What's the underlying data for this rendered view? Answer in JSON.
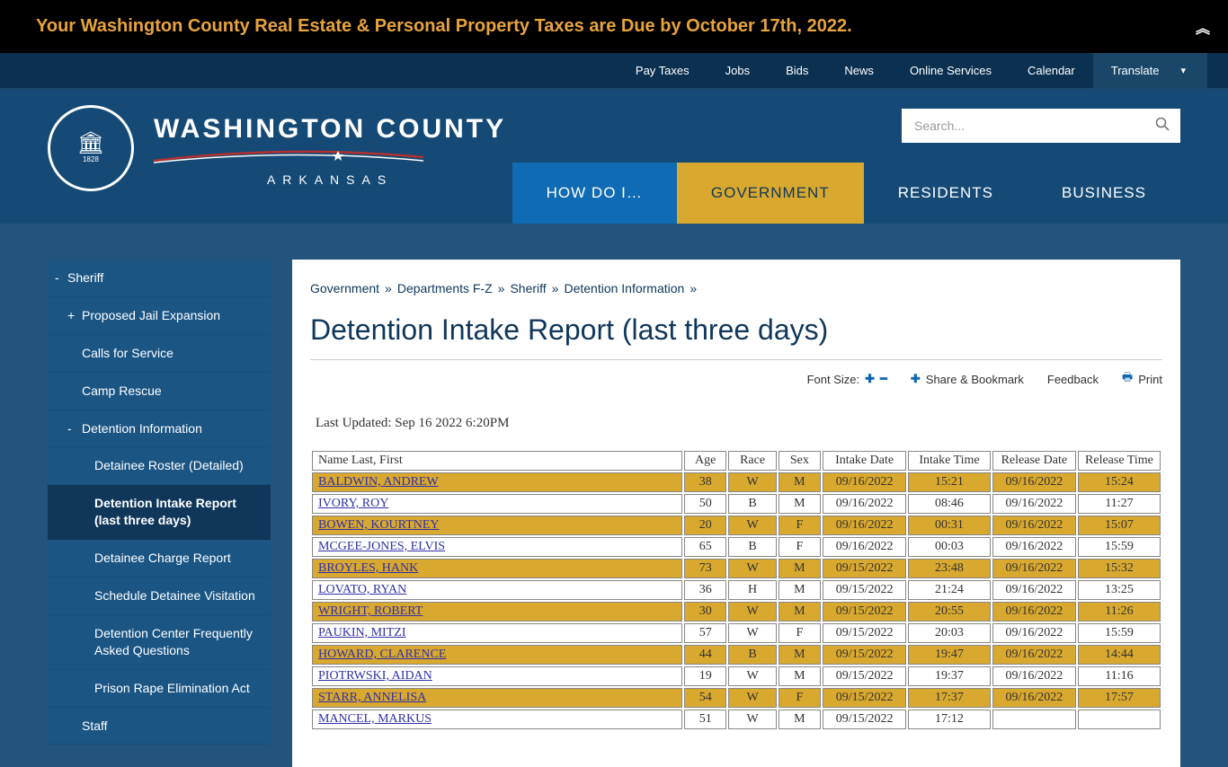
{
  "alert": {
    "text": "Your Washington County Real Estate & Personal Property Taxes are Due by October 17th, 2022.",
    "bg": "#000000",
    "color": "#e8a33d"
  },
  "top_nav": {
    "items": [
      "Pay Taxes",
      "Jobs",
      "Bids",
      "News",
      "Online Services",
      "Calendar"
    ],
    "translate": "Translate"
  },
  "brand": {
    "title": "WASHINGTON COUNTY",
    "subtitle": "ARKANSAS",
    "seal_top": "WASHINGTON COUNTY",
    "seal_bottom": "ARKANSAS",
    "seal_year": "1828"
  },
  "search": {
    "placeholder": "Search..."
  },
  "main_nav": {
    "items": [
      {
        "label": "HOW DO I…",
        "class": "howdoi"
      },
      {
        "label": "GOVERNMENT",
        "class": "gov"
      },
      {
        "label": "RESIDENTS",
        "class": ""
      },
      {
        "label": "BUSINESS",
        "class": ""
      }
    ]
  },
  "sidebar": [
    {
      "label": "Sheriff",
      "level": 0,
      "sign": "-",
      "active": false
    },
    {
      "label": "Proposed Jail Expansion",
      "level": 1,
      "sign": "+",
      "active": false
    },
    {
      "label": "Calls for Service",
      "level": 1,
      "sign": "",
      "active": false
    },
    {
      "label": "Camp Rescue",
      "level": 1,
      "sign": "",
      "active": false
    },
    {
      "label": "Detention Information",
      "level": 1,
      "sign": "-",
      "active": false
    },
    {
      "label": "Detainee Roster (Detailed)",
      "level": 2,
      "sign": "",
      "active": false
    },
    {
      "label": "Detention Intake Report (last three days)",
      "level": 2,
      "sign": "",
      "active": true
    },
    {
      "label": "Detainee Charge Report",
      "level": 2,
      "sign": "",
      "active": false
    },
    {
      "label": "Schedule Detainee Visitation",
      "level": 2,
      "sign": "",
      "active": false
    },
    {
      "label": "Detention Center Frequently Asked Questions",
      "level": 2,
      "sign": "",
      "active": false
    },
    {
      "label": "Prison Rape Elimination Act",
      "level": 2,
      "sign": "",
      "active": false
    },
    {
      "label": "Staff",
      "level": 1,
      "sign": "",
      "active": false
    }
  ],
  "breadcrumb": [
    "Government",
    "Departments F-Z",
    "Sheriff",
    "Detention Information"
  ],
  "page_title": "Detention Intake Report (last three days)",
  "tools": {
    "font_size": "Font Size:",
    "share": "Share & Bookmark",
    "feedback": "Feedback",
    "print": "Print"
  },
  "last_updated": "Last Updated: Sep 16 2022 6:20PM",
  "table": {
    "columns": [
      "Name Last, First",
      "Age",
      "Race",
      "Sex",
      "Intake Date",
      "Intake Time",
      "Release Date",
      "Release Time"
    ],
    "col_classes": [
      "col-name name",
      "col-age",
      "col-race",
      "col-sex",
      "col-date",
      "col-time",
      "col-date",
      "col-time"
    ],
    "alt_row_bg": "#d9a82e",
    "rows": [
      {
        "alt": true,
        "cells": [
          "BALDWIN, ANDREW",
          "38",
          "W",
          "M",
          "09/16/2022",
          "15:21",
          "09/16/2022",
          "15:24"
        ]
      },
      {
        "alt": false,
        "cells": [
          "IVORY, ROY",
          "50",
          "B",
          "M",
          "09/16/2022",
          "08:46",
          "09/16/2022",
          "11:27"
        ]
      },
      {
        "alt": true,
        "cells": [
          "BOWEN, KOURTNEY",
          "20",
          "W",
          "F",
          "09/16/2022",
          "00:31",
          "09/16/2022",
          "15:07"
        ]
      },
      {
        "alt": false,
        "cells": [
          "MCGEE-JONES, ELVIS",
          "65",
          "B",
          "F",
          "09/16/2022",
          "00:03",
          "09/16/2022",
          "15:59"
        ]
      },
      {
        "alt": true,
        "cells": [
          "BROYLES, HANK",
          "73",
          "W",
          "M",
          "09/15/2022",
          "23:48",
          "09/16/2022",
          "15:32"
        ]
      },
      {
        "alt": false,
        "cells": [
          "LOVATO, RYAN",
          "36",
          "H",
          "M",
          "09/15/2022",
          "21:24",
          "09/16/2022",
          "13:25"
        ]
      },
      {
        "alt": true,
        "cells": [
          "WRIGHT, ROBERT",
          "30",
          "W",
          "M",
          "09/15/2022",
          "20:55",
          "09/16/2022",
          "11:26"
        ]
      },
      {
        "alt": false,
        "cells": [
          "PAUKIN, MITZI",
          "57",
          "W",
          "F",
          "09/15/2022",
          "20:03",
          "09/16/2022",
          "15:59"
        ]
      },
      {
        "alt": true,
        "cells": [
          "HOWARD, CLARENCE",
          "44",
          "B",
          "M",
          "09/15/2022",
          "19:47",
          "09/16/2022",
          "14:44"
        ]
      },
      {
        "alt": false,
        "cells": [
          "PIOTRWSKI, AIDAN",
          "19",
          "W",
          "M",
          "09/15/2022",
          "19:37",
          "09/16/2022",
          "11:16"
        ]
      },
      {
        "alt": true,
        "cells": [
          "STARR, ANNELISA",
          "54",
          "W",
          "F",
          "09/15/2022",
          "17:37",
          "09/16/2022",
          "17:57"
        ]
      },
      {
        "alt": false,
        "cells": [
          "MANCEL, MARKUS",
          "51",
          "W",
          "M",
          "09/15/2022",
          "17:12",
          "",
          ""
        ]
      }
    ]
  },
  "colors": {
    "page_bg": "#22547c",
    "header_bg": "#154a76",
    "topnav_bg": "#0b3050",
    "sidebar_bg": "#1a5584",
    "sidebar_active_bg": "#10375a",
    "accent_gold": "#d9a82e",
    "nav_blue": "#0f6bb3",
    "link_purple": "#3030a8"
  }
}
